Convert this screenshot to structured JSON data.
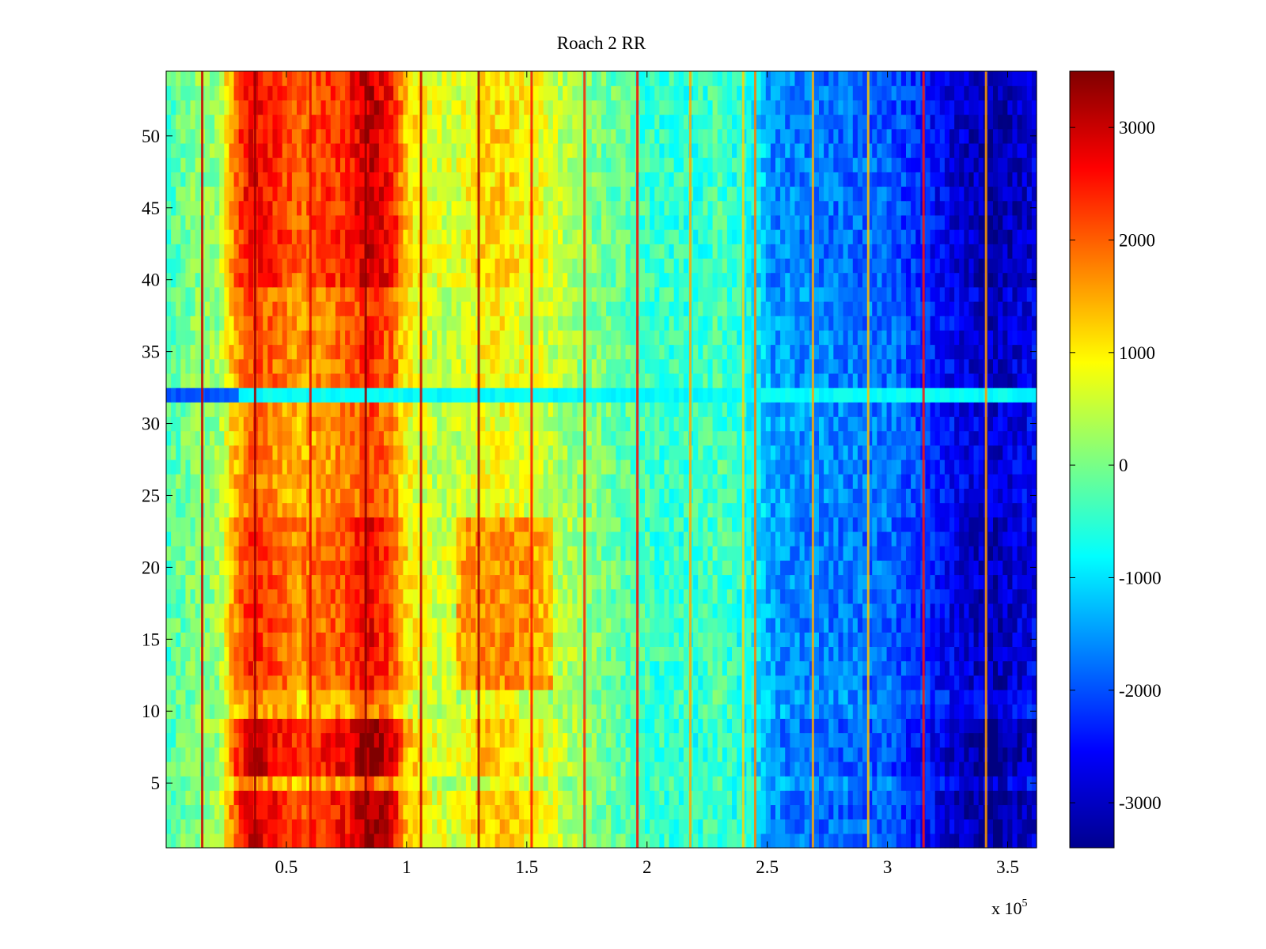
{
  "chart_data": {
    "type": "heatmap",
    "title": "Roach 2 RR",
    "xlabel": "",
    "ylabel": "",
    "x_range": [
      0,
      362000
    ],
    "y_range": [
      0.5,
      54.5
    ],
    "x_ticks": [
      {
        "value": 50000,
        "label": "0.5"
      },
      {
        "value": 100000,
        "label": "1"
      },
      {
        "value": 150000,
        "label": "1.5"
      },
      {
        "value": 200000,
        "label": "2"
      },
      {
        "value": 250000,
        "label": "2.5"
      },
      {
        "value": 300000,
        "label": "3"
      },
      {
        "value": 350000,
        "label": "3.5"
      }
    ],
    "x_exponent_base": "x 10",
    "x_exponent_power": "5",
    "y_ticks": [
      {
        "value": 5,
        "label": "5"
      },
      {
        "value": 10,
        "label": "10"
      },
      {
        "value": 15,
        "label": "15"
      },
      {
        "value": 20,
        "label": "20"
      },
      {
        "value": 25,
        "label": "25"
      },
      {
        "value": 30,
        "label": "30"
      },
      {
        "value": 35,
        "label": "35"
      },
      {
        "value": 40,
        "label": "40"
      },
      {
        "value": 45,
        "label": "45"
      },
      {
        "value": 50,
        "label": "50"
      }
    ],
    "colorbar": {
      "colormap": "jet",
      "range": [
        -3400,
        3500
      ],
      "ticks": [
        {
          "value": 3000,
          "label": "3000"
        },
        {
          "value": 2000,
          "label": "2000"
        },
        {
          "value": 1000,
          "label": "1000"
        },
        {
          "value": 0,
          "label": "0"
        },
        {
          "value": -1000,
          "label": "-1000"
        },
        {
          "value": -2000,
          "label": "-2000"
        },
        {
          "value": -3000,
          "label": "-3000"
        }
      ]
    },
    "rows": 54,
    "column_profile": [
      {
        "x": 0,
        "value": -300
      },
      {
        "x": 10000,
        "value": 0
      },
      {
        "x": 22000,
        "value": 200
      },
      {
        "x": 28000,
        "value": 1500
      },
      {
        "x": 35000,
        "value": 2300
      },
      {
        "x": 45000,
        "value": 2000
      },
      {
        "x": 55000,
        "value": 1600
      },
      {
        "x": 62000,
        "value": 1800
      },
      {
        "x": 75000,
        "value": 2000
      },
      {
        "x": 85000,
        "value": 2600
      },
      {
        "x": 95000,
        "value": 2000
      },
      {
        "x": 100000,
        "value": 1000
      },
      {
        "x": 110000,
        "value": 600
      },
      {
        "x": 120000,
        "value": 500
      },
      {
        "x": 130000,
        "value": 900
      },
      {
        "x": 140000,
        "value": 1000
      },
      {
        "x": 150000,
        "value": 800
      },
      {
        "x": 160000,
        "value": 500
      },
      {
        "x": 180000,
        "value": 0
      },
      {
        "x": 200000,
        "value": -400
      },
      {
        "x": 220000,
        "value": -500
      },
      {
        "x": 230000,
        "value": -300
      },
      {
        "x": 245000,
        "value": -800
      },
      {
        "x": 252000,
        "value": -1500
      },
      {
        "x": 280000,
        "value": -1700
      },
      {
        "x": 300000,
        "value": -1800
      },
      {
        "x": 315000,
        "value": -2200
      },
      {
        "x": 330000,
        "value": -2700
      },
      {
        "x": 345000,
        "value": -3000
      },
      {
        "x": 362000,
        "value": -2600
      }
    ],
    "row_bands": [
      {
        "y_min": 0.5,
        "y_max": 4.5,
        "strength": 1.3
      },
      {
        "y_min": 4.5,
        "y_max": 5.5,
        "strength": 0.8
      },
      {
        "y_min": 5.5,
        "y_max": 9.5,
        "strength": 1.35
      },
      {
        "y_min": 9.5,
        "y_max": 11.5,
        "strength": 0.75
      },
      {
        "y_min": 11.5,
        "y_max": 23.5,
        "strength": 1.05
      },
      {
        "y_min": 23.5,
        "y_max": 31.5,
        "strength": 0.85
      },
      {
        "y_min": 31.5,
        "y_max": 32.5,
        "strength": 0.0,
        "override": -800
      },
      {
        "y_min": 32.5,
        "y_max": 39.5,
        "strength": 0.95
      },
      {
        "y_min": 39.5,
        "y_max": 54.5,
        "strength": 1.2
      }
    ],
    "mid_band_boost": {
      "x_min": 120000,
      "x_max": 160000,
      "y_min": 11.5,
      "y_max": 23.5,
      "value": 1100
    },
    "vertical_spikes": [
      {
        "x": 15000,
        "value": 3000
      },
      {
        "x": 37000,
        "value": 3300
      },
      {
        "x": 60000,
        "value": 2800
      },
      {
        "x": 83000,
        "value": 3400
      },
      {
        "x": 106000,
        "value": 3000
      },
      {
        "x": 130000,
        "value": 3200
      },
      {
        "x": 152000,
        "value": 2500
      },
      {
        "x": 174000,
        "value": 2400
      },
      {
        "x": 196000,
        "value": 2600
      },
      {
        "x": 218000,
        "value": 1500
      },
      {
        "x": 240000,
        "value": 1200
      },
      {
        "x": 245000,
        "value": 1800
      },
      {
        "x": 269000,
        "value": 1500
      },
      {
        "x": 292000,
        "value": 1300
      },
      {
        "x": 315000,
        "value": 2500
      },
      {
        "x": 341000,
        "value": 1600
      }
    ]
  }
}
